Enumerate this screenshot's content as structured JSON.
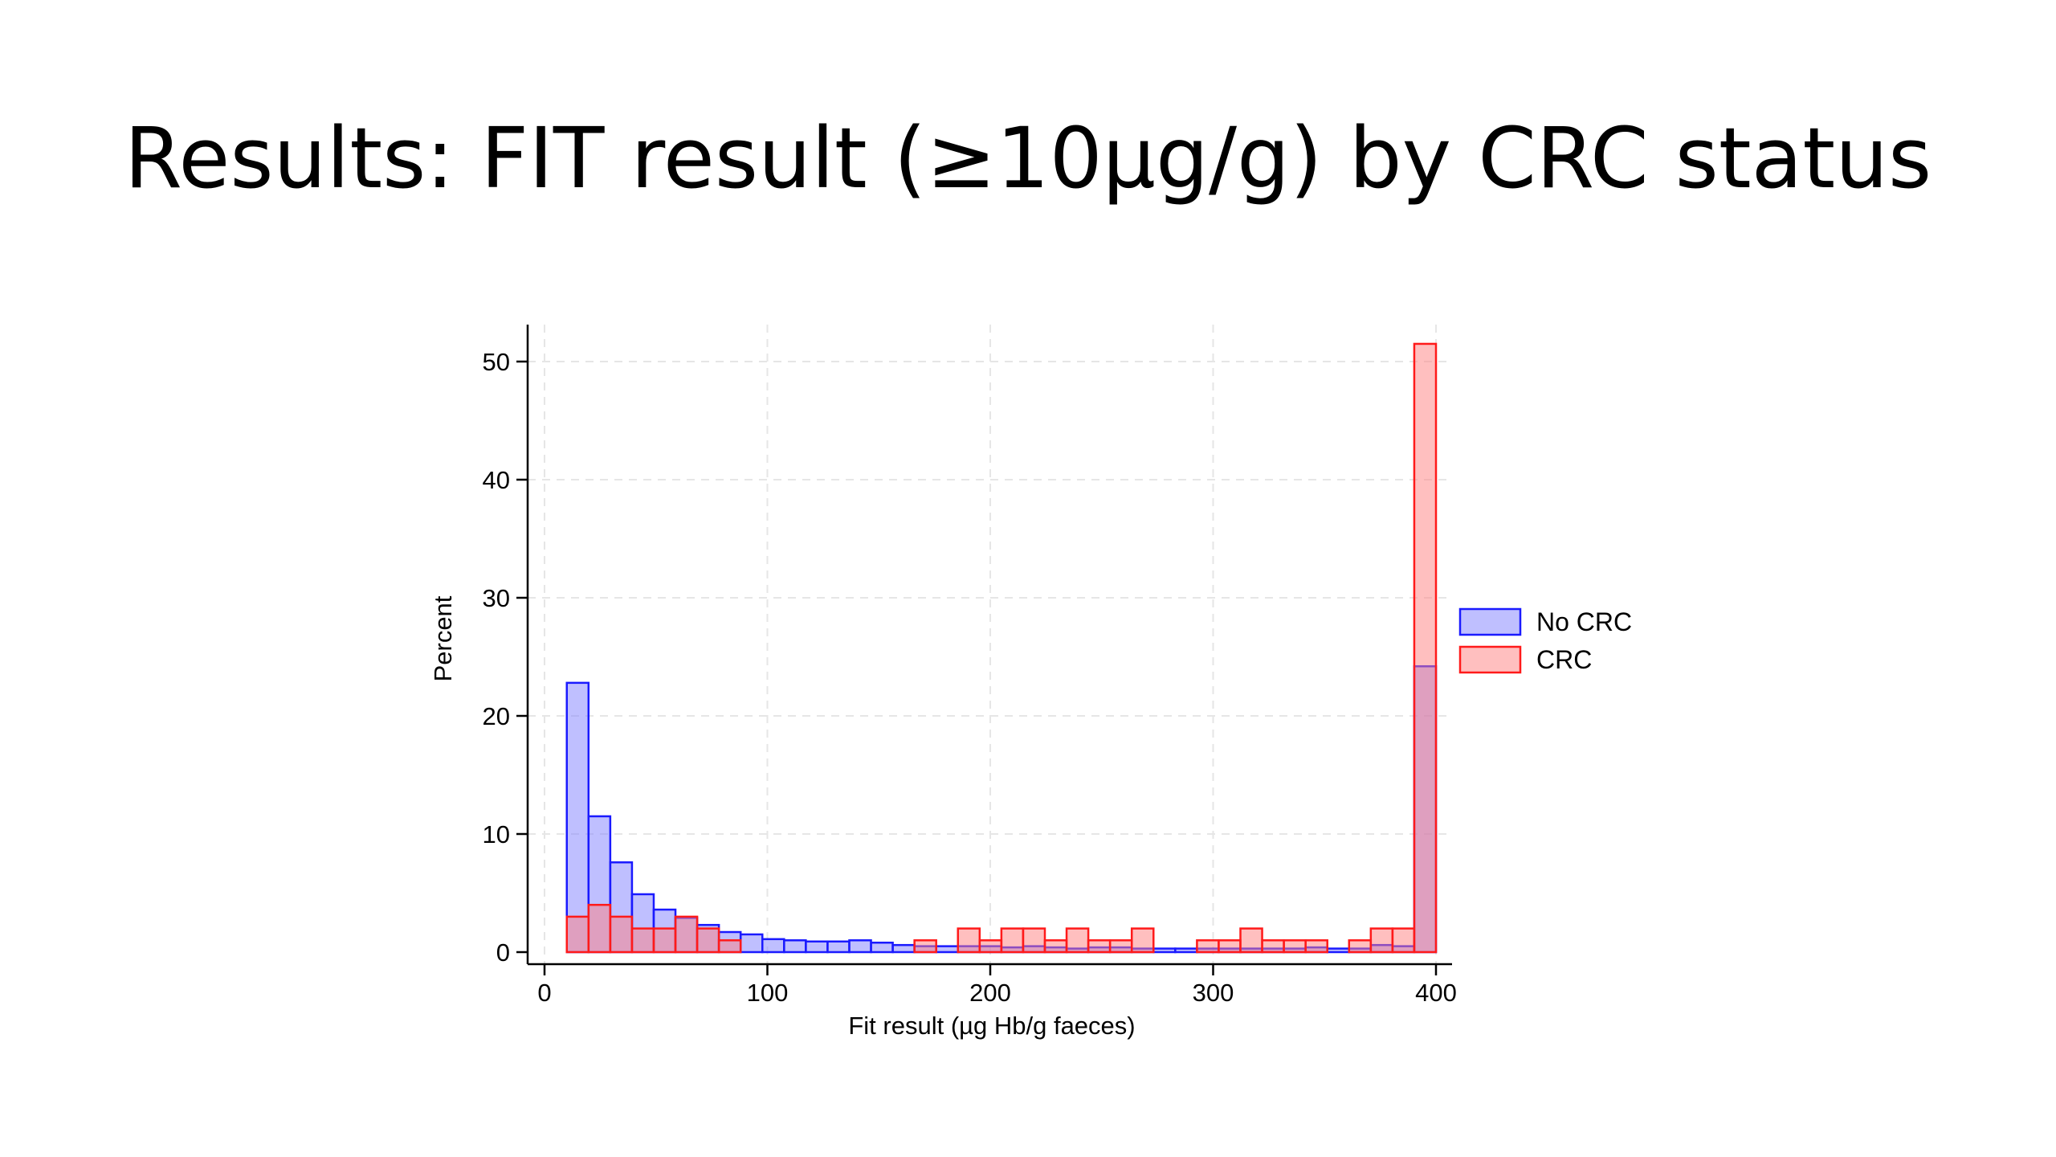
{
  "slide": {
    "title": "Results: FIT result (≥10µg/g) by CRC status"
  },
  "chart_data": {
    "type": "bar",
    "title": "",
    "xlabel": "Fit result (µg Hb/g faeces)",
    "ylabel": "Percent",
    "xlim": [
      0,
      400
    ],
    "ylim": [
      0,
      53
    ],
    "xticks": [
      0,
      100,
      200,
      300,
      400
    ],
    "yticks": [
      0,
      10,
      20,
      30,
      40,
      50
    ],
    "grid": true,
    "legend_position": "right",
    "bin_edges": [
      10,
      19.75,
      29.5,
      39.25,
      49,
      58.75,
      68.5,
      78.25,
      88,
      97.75,
      107.5,
      117.25,
      127,
      136.75,
      146.5,
      156.25,
      166,
      175.75,
      185.5,
      195.25,
      205,
      214.75,
      224.5,
      234.25,
      244,
      253.75,
      263.5,
      273.25,
      283,
      292.75,
      302.5,
      312.25,
      322,
      331.75,
      341.5,
      351.25,
      361,
      370.75,
      380.5,
      390.25,
      400
    ],
    "series": [
      {
        "name": "No CRC",
        "fill": "#7f7fff",
        "stroke": "#1a1aff",
        "values": [
          22.8,
          11.5,
          7.6,
          4.9,
          3.6,
          2.9,
          2.3,
          1.7,
          1.5,
          1.1,
          1.0,
          0.9,
          0.9,
          1.0,
          0.8,
          0.6,
          0.5,
          0.5,
          0.5,
          0.5,
          0.4,
          0.5,
          0.4,
          0.3,
          0.4,
          0.4,
          0.3,
          0.3,
          0.3,
          0.3,
          0.3,
          0.3,
          0.3,
          0.3,
          0.4,
          0.3,
          0.3,
          0.6,
          0.5,
          24.2
        ]
      },
      {
        "name": "CRC",
        "fill": "#ff8080",
        "stroke": "#ff1a1a",
        "values": [
          3.0,
          4.0,
          3.0,
          2.0,
          2.0,
          3.0,
          2.0,
          1.0,
          0,
          0,
          0,
          0,
          0,
          0,
          0,
          0,
          1.0,
          0,
          2.0,
          1.0,
          2.0,
          2.0,
          1.0,
          2.0,
          1.0,
          1.0,
          2.0,
          0,
          0,
          1.0,
          1.0,
          2.0,
          1.0,
          1.0,
          1.0,
          0,
          1.0,
          2.0,
          2.0,
          51.5
        ]
      }
    ]
  }
}
